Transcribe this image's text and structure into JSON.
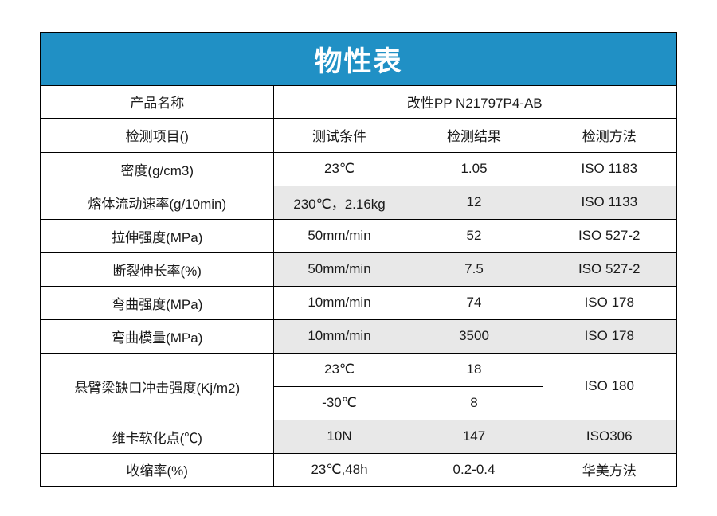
{
  "colors": {
    "title_bg": "#2090C5",
    "title_text": "#ffffff",
    "row_shade": "#e8e8e8",
    "border": "#000000",
    "text": "#1a1a1a",
    "page_bg": "#ffffff"
  },
  "table": {
    "title": "物性表",
    "product": {
      "label": "产品名称",
      "value": "改性PP N21797P4-AB"
    },
    "columns": [
      "检测项目()",
      "测试条件",
      "检测结果",
      "检测方法"
    ],
    "rows": [
      {
        "item": "密度(g/cm3)",
        "condition": "23℃",
        "result": "1.05",
        "method": "ISO 1183",
        "shaded": false
      },
      {
        "item": "熔体流动速率(g/10min)",
        "condition": "230℃，2.16kg",
        "result": "12",
        "method": "ISO 1133",
        "shaded": true
      },
      {
        "item": "拉伸强度(MPa)",
        "condition": "50mm/min",
        "result": "52",
        "method": "ISO 527-2",
        "shaded": false
      },
      {
        "item": "断裂伸长率(%)",
        "condition": "50mm/min",
        "result": "7.5",
        "method": "ISO 527-2",
        "shaded": true
      },
      {
        "item": "弯曲强度(MPa)",
        "condition": "10mm/min",
        "result": "74",
        "method": "ISO 178",
        "shaded": false
      },
      {
        "item": "弯曲模量(MPa)",
        "condition": "10mm/min",
        "result": "3500",
        "method": "ISO 178",
        "shaded": true
      },
      {
        "item": "悬臂梁缺口冲击强度(Kj/m2)",
        "method": "ISO 180",
        "shaded": false,
        "sub_rows": [
          {
            "condition": "23℃",
            "result": "18"
          },
          {
            "condition": "-30℃",
            "result": "8"
          }
        ]
      },
      {
        "item": "维卡软化点(℃)",
        "condition": "10N",
        "result": "147",
        "method": "ISO306",
        "shaded": true
      },
      {
        "item": "收缩率(%)",
        "condition": "23℃,48h",
        "result": "0.2-0.4",
        "method": "华美方法",
        "shaded": false
      }
    ]
  }
}
